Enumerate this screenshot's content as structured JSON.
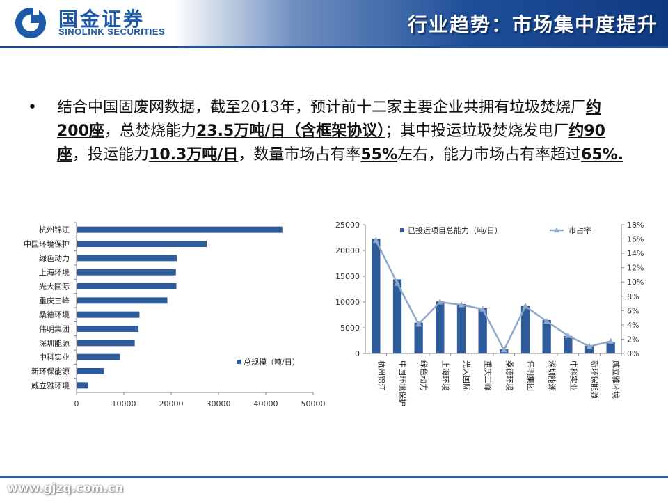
{
  "header": {
    "logo_cn": "国金证券",
    "logo_en": "SINOLINK SECURITIES",
    "title": "行业趋势：市场集中度提升"
  },
  "bullet": {
    "segments": [
      {
        "text": "结合中国固废网数据，截至2013年，预计前十二家主要企业共拥有垃圾焚烧厂",
        "em": false
      },
      {
        "text": "约200座",
        "em": true
      },
      {
        "text": "，总焚烧能力",
        "em": false
      },
      {
        "text": "23.5万吨/日（含框架协议）",
        "em": true
      },
      {
        "text": "；其中投运垃圾焚烧发电厂",
        "em": false
      },
      {
        "text": "约90座",
        "em": true
      },
      {
        "text": "，投运能力",
        "em": false
      },
      {
        "text": "10.3万吨/日",
        "em": true
      },
      {
        "text": "，数量市场占有率",
        "em": false
      },
      {
        "text": "55%",
        "em": true
      },
      {
        "text": "左右，能力市场占有率超过",
        "em": false
      },
      {
        "text": "65%.",
        "em": true
      }
    ]
  },
  "footer": {
    "url": "www.gjzq.com.cn"
  },
  "colors": {
    "bar": "#2e5b9a",
    "line": "#8fa7cc",
    "header_dark": "#1f4f99"
  },
  "chart_data": [
    {
      "type": "bar",
      "orientation": "horizontal",
      "categories": [
        "杭州锦江",
        "中国环境保护",
        "绿色动力",
        "上海环境",
        "光大国际",
        "重庆三峰",
        "桑德环境",
        "伟明集团",
        "深圳能源",
        "中科实业",
        "新环保能源",
        "威立雅环境"
      ],
      "series": [
        {
          "name": "总规模（吨/日）",
          "values": [
            43500,
            27500,
            21200,
            21000,
            21100,
            19200,
            13300,
            13100,
            12300,
            9200,
            5800,
            2500
          ]
        }
      ],
      "xlim": [
        0,
        50000
      ],
      "xticks": [
        0,
        10000,
        20000,
        30000,
        40000,
        50000
      ],
      "legend": "right-bottom"
    },
    {
      "type": "bar+line",
      "categories": [
        "杭州锦江",
        "中国环境保护",
        "绿色动力",
        "上海环境",
        "光大国际",
        "重庆三峰",
        "桑德环境",
        "伟明集团",
        "深圳能源",
        "中科实业",
        "新环保能源",
        "威立雅环境"
      ],
      "series": [
        {
          "name": "已投运项目总能力（吨/日）",
          "type": "bar",
          "axis": "left",
          "values": [
            22300,
            14400,
            6000,
            10100,
            9600,
            8800,
            800,
            9200,
            6500,
            3400,
            1500,
            2200
          ]
        },
        {
          "name": "市占率",
          "type": "line",
          "axis": "right",
          "values": [
            15.8,
            9.8,
            4.1,
            7.2,
            6.8,
            6.2,
            0.5,
            6.6,
            4.5,
            2.5,
            1.0,
            1.7
          ]
        }
      ],
      "ylim_left": [
        0,
        25000
      ],
      "yticks_left": [
        0,
        5000,
        10000,
        15000,
        20000,
        25000
      ],
      "ylim_right": [
        0,
        18
      ],
      "yticks_right": [
        "0%",
        "2%",
        "4%",
        "6%",
        "8%",
        "10%",
        "12%",
        "14%",
        "16%",
        "18%"
      ],
      "legend": "top"
    }
  ]
}
